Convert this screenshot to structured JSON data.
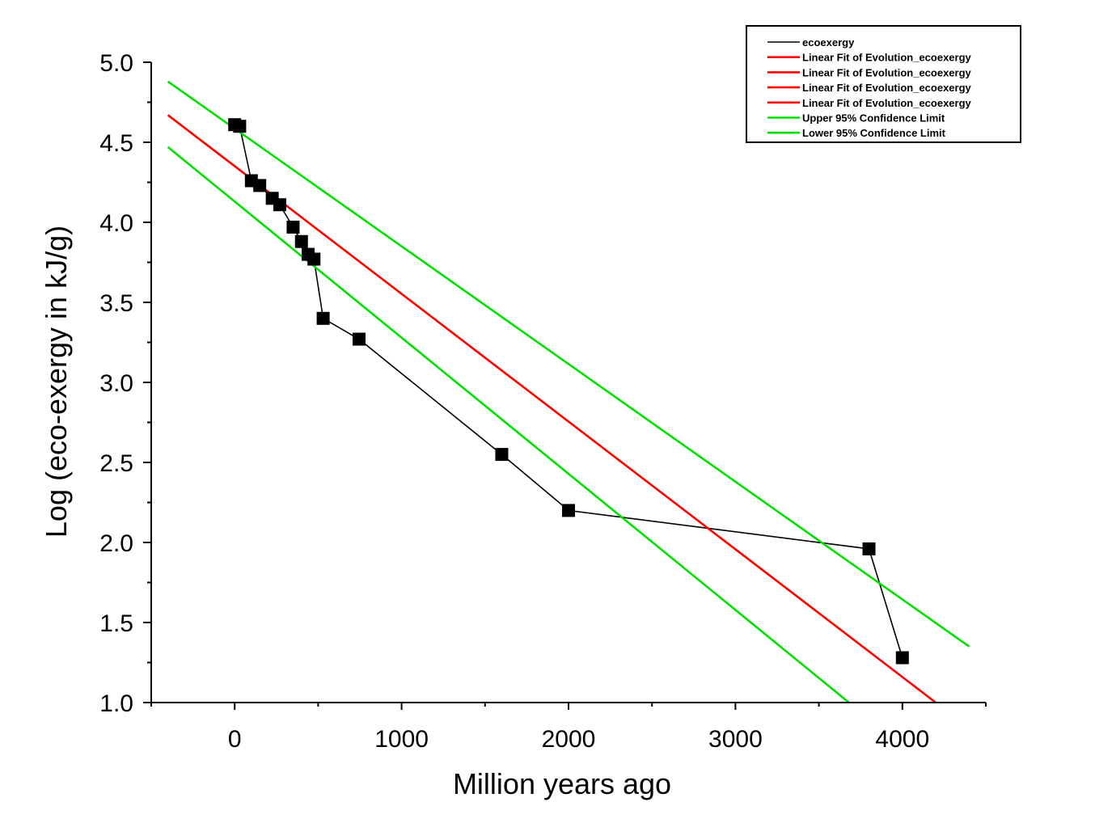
{
  "chart_data": {
    "type": "line",
    "xlabel": "Million years ago",
    "ylabel": "Log (eco-exergy in kJ/g)",
    "xlim": [
      -500,
      4500
    ],
    "ylim": [
      1.0,
      5.0
    ],
    "xticks": [
      0,
      1000,
      2000,
      3000,
      4000
    ],
    "xtick_labels": [
      "0",
      "1000",
      "2000",
      "3000",
      "4000"
    ],
    "yticks": [
      1.0,
      1.5,
      2.0,
      2.5,
      3.0,
      3.5,
      4.0,
      4.5,
      5.0
    ],
    "ytick_labels": [
      "1.0",
      "1.5",
      "2.0",
      "2.5",
      "3.0",
      "3.5",
      "4.0",
      "4.5",
      "5.0"
    ],
    "legend_position": "top-right",
    "series": [
      {
        "name": "ecoexergy",
        "kind": "line-markers",
        "color": "#000000",
        "x": [
          0,
          30,
          100,
          150,
          225,
          270,
          350,
          400,
          440,
          475,
          530,
          745,
          1600,
          2000,
          3800,
          4000
        ],
        "y": [
          4.61,
          4.6,
          4.26,
          4.23,
          4.15,
          4.11,
          3.97,
          3.88,
          3.8,
          3.77,
          3.4,
          3.27,
          2.55,
          2.2,
          1.96,
          1.28
        ]
      },
      {
        "name": "Linear Fit of Evolution_ecoexergy",
        "kind": "line",
        "color": "#ff0000",
        "x": [
          -400,
          4200
        ],
        "y": [
          4.67,
          1.0
        ]
      },
      {
        "name": "Linear Fit of Evolution_ecoexergy",
        "kind": "legend-only",
        "color": "#ff0000"
      },
      {
        "name": "Linear Fit of Evolution_ecoexergy",
        "kind": "legend-only",
        "color": "#ff0000"
      },
      {
        "name": "Linear Fit of Evolution_ecoexergy",
        "kind": "legend-only",
        "color": "#ff0000"
      },
      {
        "name": "Upper 95%  Confidence Limit",
        "kind": "line",
        "color": "#00e000",
        "x": [
          -400,
          4400
        ],
        "y": [
          4.88,
          1.35
        ]
      },
      {
        "name": "Lower 95%  Confidence Limit",
        "kind": "line",
        "color": "#00e000",
        "x": [
          -400,
          3680
        ],
        "y": [
          4.47,
          1.0
        ]
      }
    ]
  }
}
